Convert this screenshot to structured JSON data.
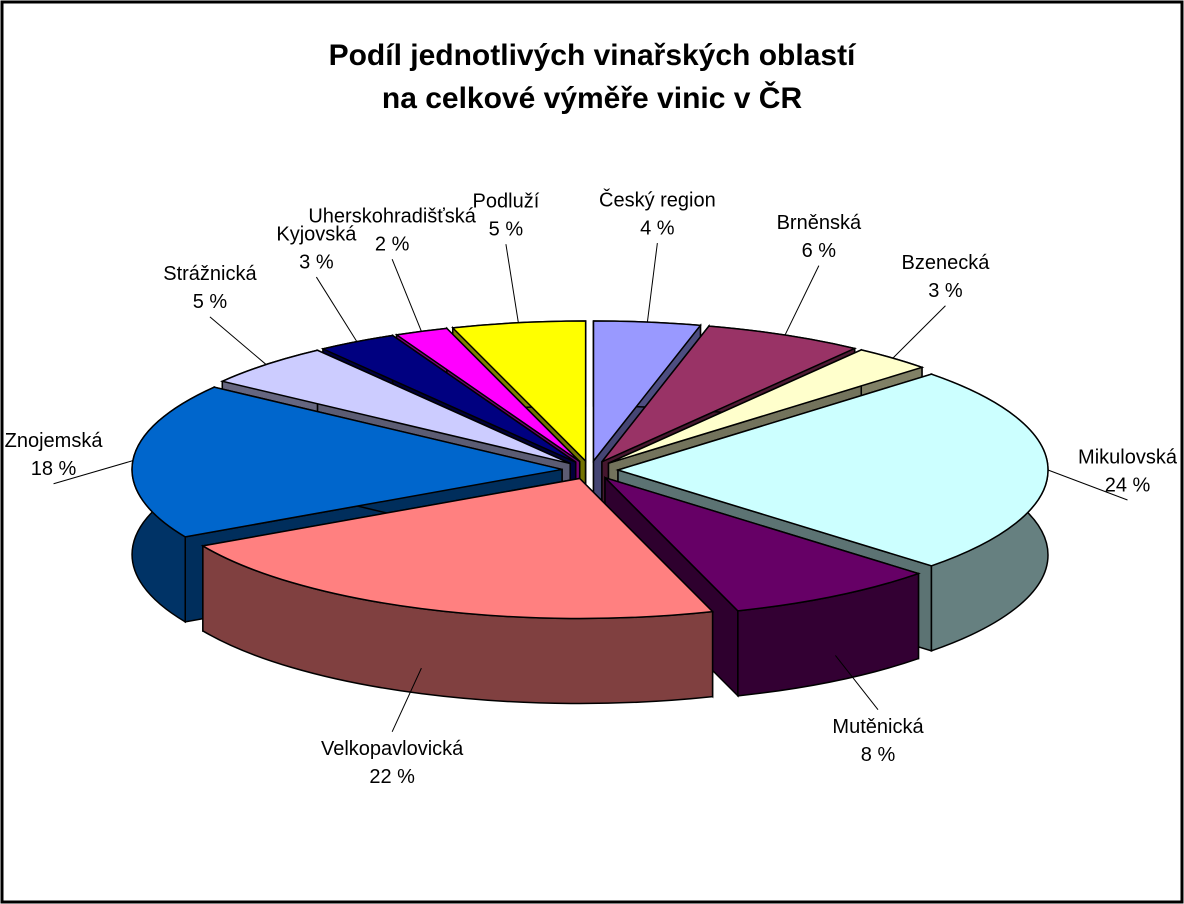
{
  "chart_data": {
    "type": "pie3d",
    "title": [
      "Podíl jednotlivých vinařských oblastí",
      "na celkové výměře vinic v ČR"
    ],
    "categories": [
      "Český region",
      "Brněnská",
      "Bzenecká",
      "Mikulovská",
      "Mutěnická",
      "Velkopavlovická",
      "Znojemská",
      "Strážnická",
      "Kyjovská",
      "Uherskohradišťská",
      "Podluží"
    ],
    "values": [
      4,
      6,
      3,
      24,
      8,
      22,
      18,
      5,
      3,
      2,
      5
    ],
    "value_labels": [
      "4 %",
      "6 %",
      "3 %",
      "24 %",
      "8 %",
      "22 %",
      "18 %",
      "5 %",
      "3 %",
      "2 %",
      "5 %"
    ],
    "colors": [
      "#9999ff",
      "#993366",
      "#ffffcc",
      "#ccffff",
      "#660066",
      "#ff8080",
      "#0066cc",
      "#ccccff",
      "#000080",
      "#ff00ff",
      "#ffff00"
    ]
  }
}
